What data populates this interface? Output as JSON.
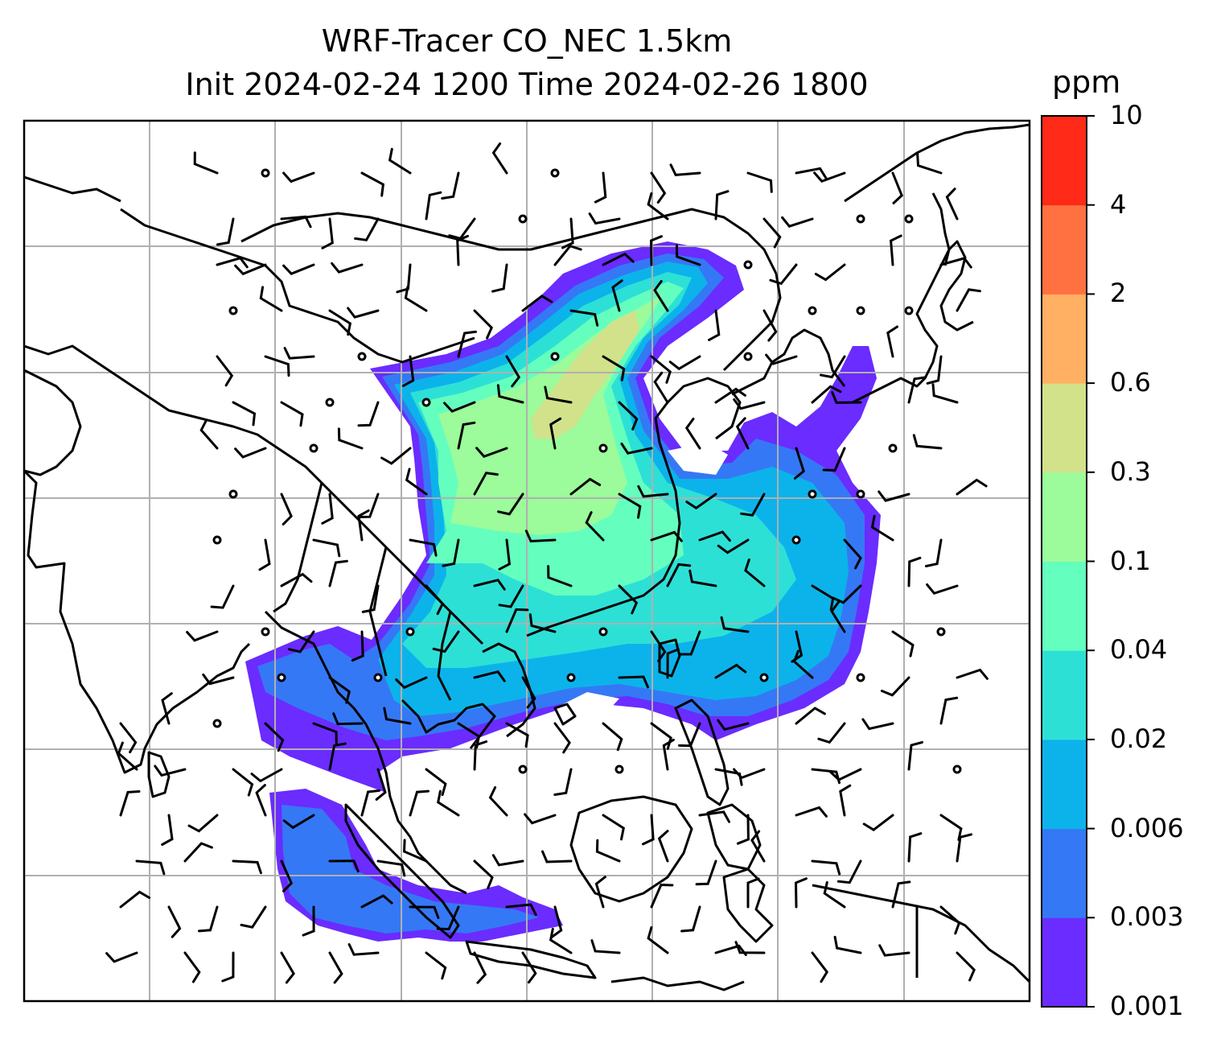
{
  "title": {
    "line1": "WRF-Tracer CO_NEC 1.5km",
    "line2": "Init 2024-02-24 1200 Time 2024-02-26 1800"
  },
  "colorbar": {
    "unit": "ppm",
    "levels": [
      "0.001",
      "0.003",
      "0.006",
      "0.02",
      "0.04",
      "0.1",
      "0.3",
      "0.6",
      "2",
      "4",
      "10"
    ],
    "colors": [
      "#6a2cff",
      "#3578f5",
      "#0cb3ea",
      "#2de0d6",
      "#64ffbe",
      "#9cfb9a",
      "#d1e28a",
      "#ffb062",
      "#ff7140",
      "#ff2a18"
    ]
  },
  "map": {
    "frame_color": "#000000",
    "grid_color": "#b0b0b0",
    "coast_color": "#000000",
    "wind_barb_color": "#000000"
  }
}
